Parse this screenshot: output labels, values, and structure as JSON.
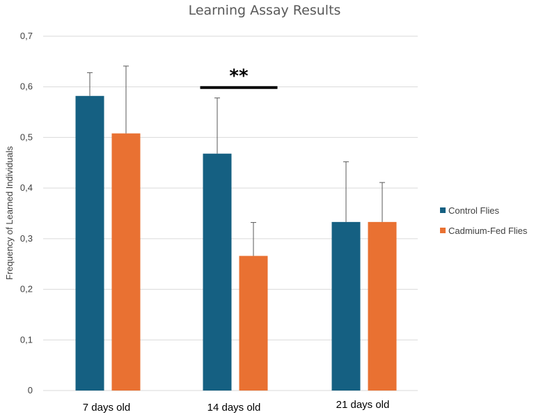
{
  "chart_data": {
    "type": "bar",
    "title": "Learning Assay Results",
    "xlabel": "",
    "ylabel": "Frequency of Learned Individuals",
    "ylim": [
      0,
      0.7
    ],
    "ytick_labels": [
      "0",
      "0,1",
      "0,2",
      "0,3",
      "0,4",
      "0,5",
      "0,6",
      "0,7"
    ],
    "yticks": [
      0,
      0.1,
      0.2,
      0.3,
      0.4,
      0.5,
      0.6,
      0.7
    ],
    "grid": true,
    "legend_placement": "right",
    "categories": [
      "7 days old",
      "14 days old",
      "21 days old"
    ],
    "series": [
      {
        "name": "Control Flies",
        "color": "#156082",
        "values": [
          0.582,
          0.468,
          0.333
        ],
        "error_upper": [
          0.628,
          0.578,
          0.452
        ]
      },
      {
        "name": "Cadmium-Fed Flies",
        "color": "#E97132",
        "values": [
          0.508,
          0.266,
          0.333
        ],
        "error_upper": [
          0.641,
          0.332,
          0.411
        ]
      }
    ],
    "annotations": [
      {
        "text": "**",
        "category_index": 1,
        "y": 0.6
      }
    ]
  }
}
